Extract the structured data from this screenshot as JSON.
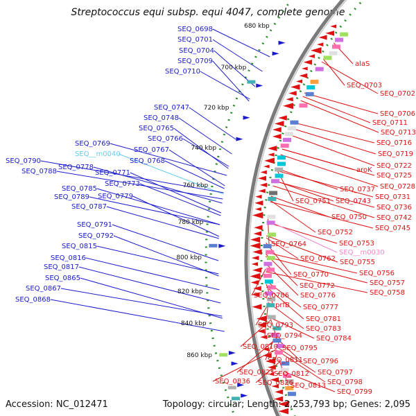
{
  "title": "Streptococcus equi subsp. equi 4047, complete genome",
  "footer": {
    "accession": "Accession: NC_012471",
    "summary": "Topology: circular; Length: 2,253,793 bp; Genes: 2,095"
  },
  "colors": {
    "forward_genes": "#1a1acc",
    "reverse_genes": "#dd1111",
    "rna_genes": "#66ccee",
    "pseudo_genes": "#ee88cc",
    "backbone": "#888888",
    "tick_dots": "#2a8a2a"
  },
  "kbp_ticks": [
    {
      "label": "680 kbp"
    },
    {
      "label": "700 kbp"
    },
    {
      "label": "720 kbp"
    },
    {
      "label": "740 kbp"
    },
    {
      "label": "760 kbp"
    },
    {
      "label": "780 kbp"
    },
    {
      "label": "800 kbp"
    },
    {
      "label": "820 kbp"
    },
    {
      "label": "840 kbp"
    },
    {
      "label": "860 kbp"
    }
  ],
  "left_labels": [
    {
      "label": "SEQ_0698",
      "kind": "forward"
    },
    {
      "label": "SEQ_0701",
      "kind": "forward"
    },
    {
      "label": "SEQ_0704",
      "kind": "forward"
    },
    {
      "label": "SEQ_0709",
      "kind": "forward"
    },
    {
      "label": "SEQ_0710",
      "kind": "forward"
    },
    {
      "label": "SEQ_0747",
      "kind": "forward"
    },
    {
      "label": "SEQ_0748",
      "kind": "forward"
    },
    {
      "label": "SEQ_0765",
      "kind": "forward"
    },
    {
      "label": "SEQ_0766",
      "kind": "forward"
    },
    {
      "label": "SEQ_0769",
      "kind": "forward"
    },
    {
      "label": "SEQ_0767",
      "kind": "forward"
    },
    {
      "label": "SEQ__m0040",
      "kind": "rna"
    },
    {
      "label": "SEQ_0768",
      "kind": "forward"
    },
    {
      "label": "SEQ_0790",
      "kind": "forward"
    },
    {
      "label": "SEQ_0778",
      "kind": "forward"
    },
    {
      "label": "SEQ_0771",
      "kind": "forward"
    },
    {
      "label": "SEQ_0788",
      "kind": "forward"
    },
    {
      "label": "SEQ_0773",
      "kind": "forward"
    },
    {
      "label": "SEQ_0785",
      "kind": "forward"
    },
    {
      "label": "SEQ_0779",
      "kind": "forward"
    },
    {
      "label": "SEQ_0789",
      "kind": "forward"
    },
    {
      "label": "SEQ_0787",
      "kind": "forward"
    },
    {
      "label": "SEQ_0791",
      "kind": "forward"
    },
    {
      "label": "SEQ_0792",
      "kind": "forward"
    },
    {
      "label": "SEQ_0815",
      "kind": "forward"
    },
    {
      "label": "SEQ_0816",
      "kind": "forward"
    },
    {
      "label": "SEQ_0817",
      "kind": "forward"
    },
    {
      "label": "SEQ_0865",
      "kind": "forward"
    },
    {
      "label": "SEQ_0867",
      "kind": "forward"
    },
    {
      "label": "SEQ_0868",
      "kind": "forward"
    }
  ],
  "right_labels": [
    {
      "label": "alaS",
      "kind": "reverse"
    },
    {
      "label": "SEQ_0703",
      "kind": "reverse"
    },
    {
      "label": "SEQ_0702",
      "kind": "reverse"
    },
    {
      "label": "SEQ_0706",
      "kind": "reverse"
    },
    {
      "label": "SEQ_0711",
      "kind": "reverse"
    },
    {
      "label": "SEQ_0713",
      "kind": "reverse"
    },
    {
      "label": "SEQ_0716",
      "kind": "reverse"
    },
    {
      "label": "SEQ_0719",
      "kind": "reverse"
    },
    {
      "label": "SEQ_0722",
      "kind": "reverse"
    },
    {
      "label": "aroK",
      "kind": "reverse"
    },
    {
      "label": "SEQ_0725",
      "kind": "reverse"
    },
    {
      "label": "SEQ_0728",
      "kind": "reverse"
    },
    {
      "label": "SEQ_0737",
      "kind": "reverse"
    },
    {
      "label": "SEQ_0731",
      "kind": "reverse"
    },
    {
      "label": "SEQ_0751",
      "kind": "reverse"
    },
    {
      "label": "SEQ_0743",
      "kind": "reverse"
    },
    {
      "label": "SEQ_0736",
      "kind": "reverse"
    },
    {
      "label": "SEQ_0742",
      "kind": "reverse"
    },
    {
      "label": "SEQ_0750",
      "kind": "reverse"
    },
    {
      "label": "SEQ_0745",
      "kind": "reverse"
    },
    {
      "label": "SEQ_0752",
      "kind": "reverse"
    },
    {
      "label": "SEQ_0753",
      "kind": "reverse"
    },
    {
      "label": "SEQ_0764",
      "kind": "reverse"
    },
    {
      "label": "SEQ__m0030",
      "kind": "pseudo"
    },
    {
      "label": "SEQ_0762",
      "kind": "reverse"
    },
    {
      "label": "SEQ_0755",
      "kind": "reverse"
    },
    {
      "label": "SEQ_0770",
      "kind": "reverse"
    },
    {
      "label": "SEQ_0756",
      "kind": "reverse"
    },
    {
      "label": "SEQ_0757",
      "kind": "reverse"
    },
    {
      "label": "SEQ_0772",
      "kind": "reverse"
    },
    {
      "label": "SEQ_0758",
      "kind": "reverse"
    },
    {
      "label": "SEQ_0786",
      "kind": "reverse"
    },
    {
      "label": "SEQ_0776",
      "kind": "reverse"
    },
    {
      "label": "prfB",
      "kind": "reverse"
    },
    {
      "label": "SEQ_0777",
      "kind": "reverse"
    },
    {
      "label": "SEQ_0781",
      "kind": "reverse"
    },
    {
      "label": "SEQ_0793",
      "kind": "reverse"
    },
    {
      "label": "SEQ_0783",
      "kind": "reverse"
    },
    {
      "label": "SEQ_0794",
      "kind": "reverse"
    },
    {
      "label": "SEQ_0784",
      "kind": "reverse"
    },
    {
      "label": "SEQ_0810",
      "kind": "reverse"
    },
    {
      "label": "SEQ_0795",
      "kind": "reverse"
    },
    {
      "label": "SEQ_0811",
      "kind": "reverse"
    },
    {
      "label": "SEQ_0796",
      "kind": "reverse"
    },
    {
      "label": "SEQ_0825",
      "kind": "reverse"
    },
    {
      "label": "SEQ_0812",
      "kind": "reverse"
    },
    {
      "label": "SEQ_0797",
      "kind": "reverse"
    },
    {
      "label": "SEQ_0836",
      "kind": "reverse"
    },
    {
      "label": "SEQ_0826",
      "kind": "reverse"
    },
    {
      "label": "SEQ_0813",
      "kind": "reverse"
    },
    {
      "label": "SEQ_0798",
      "kind": "reverse"
    },
    {
      "label": "SEQ_0799",
      "kind": "reverse"
    }
  ]
}
